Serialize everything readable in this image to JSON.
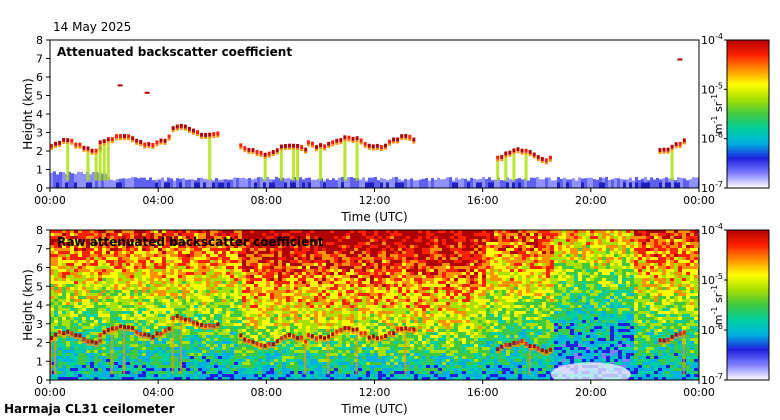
{
  "date": "14 May 2025",
  "footer": "Harmaja CL31 ceilometer",
  "colormap": [
    "#ffffff",
    "#8080ff",
    "#2020e0",
    "#00b0e0",
    "#00d0a0",
    "#40c840",
    "#a8e000",
    "#ffff00",
    "#ff9000",
    "#ff2000",
    "#b00000"
  ],
  "chart_data": [
    {
      "type": "heatmap",
      "title": "Attenuated backscatter coefficient",
      "xlabel": "Time (UTC)",
      "ylabel": "Height (km)",
      "xticks": [
        "00:00",
        "04:00",
        "08:00",
        "12:00",
        "16:00",
        "20:00",
        "00:00"
      ],
      "yticks": [
        "0",
        "1",
        "2",
        "3",
        "4",
        "5",
        "6",
        "7",
        "8"
      ],
      "xlim": [
        0,
        24
      ],
      "ylim": [
        0,
        8
      ],
      "colorbar": {
        "label_base": "m",
        "label_exp1": "-1",
        "label_mid": " sr",
        "label_exp2": "-1",
        "scale": "log",
        "range": [
          1e-07,
          0.0001
        ],
        "ticks": [
          {
            "base": "10",
            "exp": "-4"
          },
          {
            "base": "10",
            "exp": "-5"
          },
          {
            "base": "10",
            "exp": "-6"
          },
          {
            "base": "10",
            "exp": "-7"
          }
        ]
      },
      "features": {
        "boundary_layer_top_km": 0.4,
        "cloud_layers": [
          {
            "t_start": 0.0,
            "t_end": 1.8,
            "height_km": 2.3
          },
          {
            "t_start": 1.8,
            "t_end": 4.5,
            "height_km": 2.6
          },
          {
            "t_start": 4.5,
            "t_end": 6.3,
            "height_km": 3.1
          },
          {
            "t_start": 7.0,
            "t_end": 9.5,
            "height_km": 2.1
          },
          {
            "t_start": 9.5,
            "t_end": 13.5,
            "height_km": 2.5
          },
          {
            "t_start": 16.5,
            "t_end": 18.5,
            "height_km": 1.8
          },
          {
            "t_start": 22.5,
            "t_end": 23.5,
            "height_km": 2.3
          }
        ],
        "upper_specks": [
          {
            "t": 2.5,
            "height_km": 5.6
          },
          {
            "t": 3.5,
            "height_km": 5.2
          },
          {
            "t": 23.2,
            "height_km": 7.0
          }
        ]
      }
    },
    {
      "type": "heatmap",
      "title": "Raw attenuated backscatter coefficient",
      "xlabel": "Time (UTC)",
      "ylabel": "Height (km)",
      "xticks": [
        "00:00",
        "04:00",
        "08:00",
        "12:00",
        "16:00",
        "20:00",
        "00:00"
      ],
      "yticks": [
        "0",
        "1",
        "2",
        "3",
        "4",
        "5",
        "6",
        "7",
        "8"
      ],
      "xlim": [
        0,
        24
      ],
      "ylim": [
        0,
        8
      ],
      "colorbar": {
        "label_base": "m",
        "label_exp1": "-1",
        "label_mid": " sr",
        "label_exp2": "-1",
        "scale": "log",
        "range": [
          1e-07,
          0.0001
        ],
        "ticks": [
          {
            "base": "10",
            "exp": "-4"
          },
          {
            "base": "10",
            "exp": "-5"
          },
          {
            "base": "10",
            "exp": "-6"
          },
          {
            "base": "10",
            "exp": "-7"
          }
        ]
      }
    }
  ]
}
